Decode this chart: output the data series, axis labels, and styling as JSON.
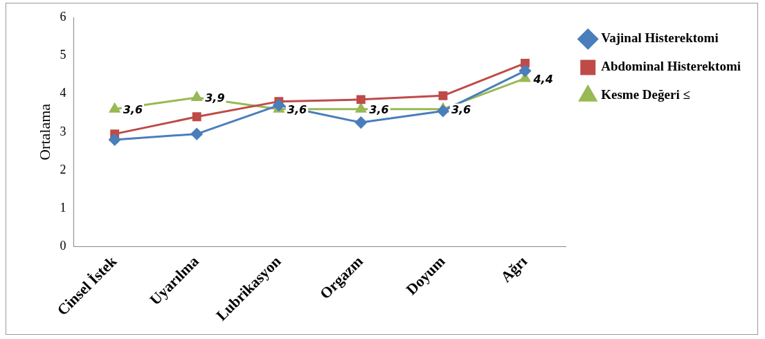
{
  "chart_data": {
    "type": "line",
    "ylabel": "Ortalama",
    "categories": [
      "Cinsel İstek",
      "Uyarılma",
      "Lubrikasyon",
      "Orgazm",
      "Doyum",
      "Ağrı"
    ],
    "ylim": [
      0,
      6
    ],
    "yticks": [
      0,
      1,
      2,
      3,
      4,
      5,
      6
    ],
    "grid": false,
    "legend": "right",
    "line_style": "solid",
    "series": [
      {
        "name": "Vajinal Histerektomi",
        "color": "#4a7ebb",
        "marker": "diamond",
        "values": [
          2.8,
          2.95,
          3.7,
          3.25,
          3.55,
          4.6
        ]
      },
      {
        "name": "Abdominal Histerektomi",
        "color": "#be4b48",
        "marker": "square",
        "values": [
          2.95,
          3.4,
          3.8,
          3.85,
          3.95,
          4.8
        ]
      },
      {
        "name": "Kesme Değeri ≤",
        "color": "#98b954",
        "marker": "triangle",
        "values": [
          3.6,
          3.9,
          3.6,
          3.6,
          3.6,
          4.4
        ],
        "value_labels": [
          "3,6",
          "3,9",
          "3,6",
          "3,6",
          "3,6",
          "4,4"
        ]
      }
    ]
  }
}
